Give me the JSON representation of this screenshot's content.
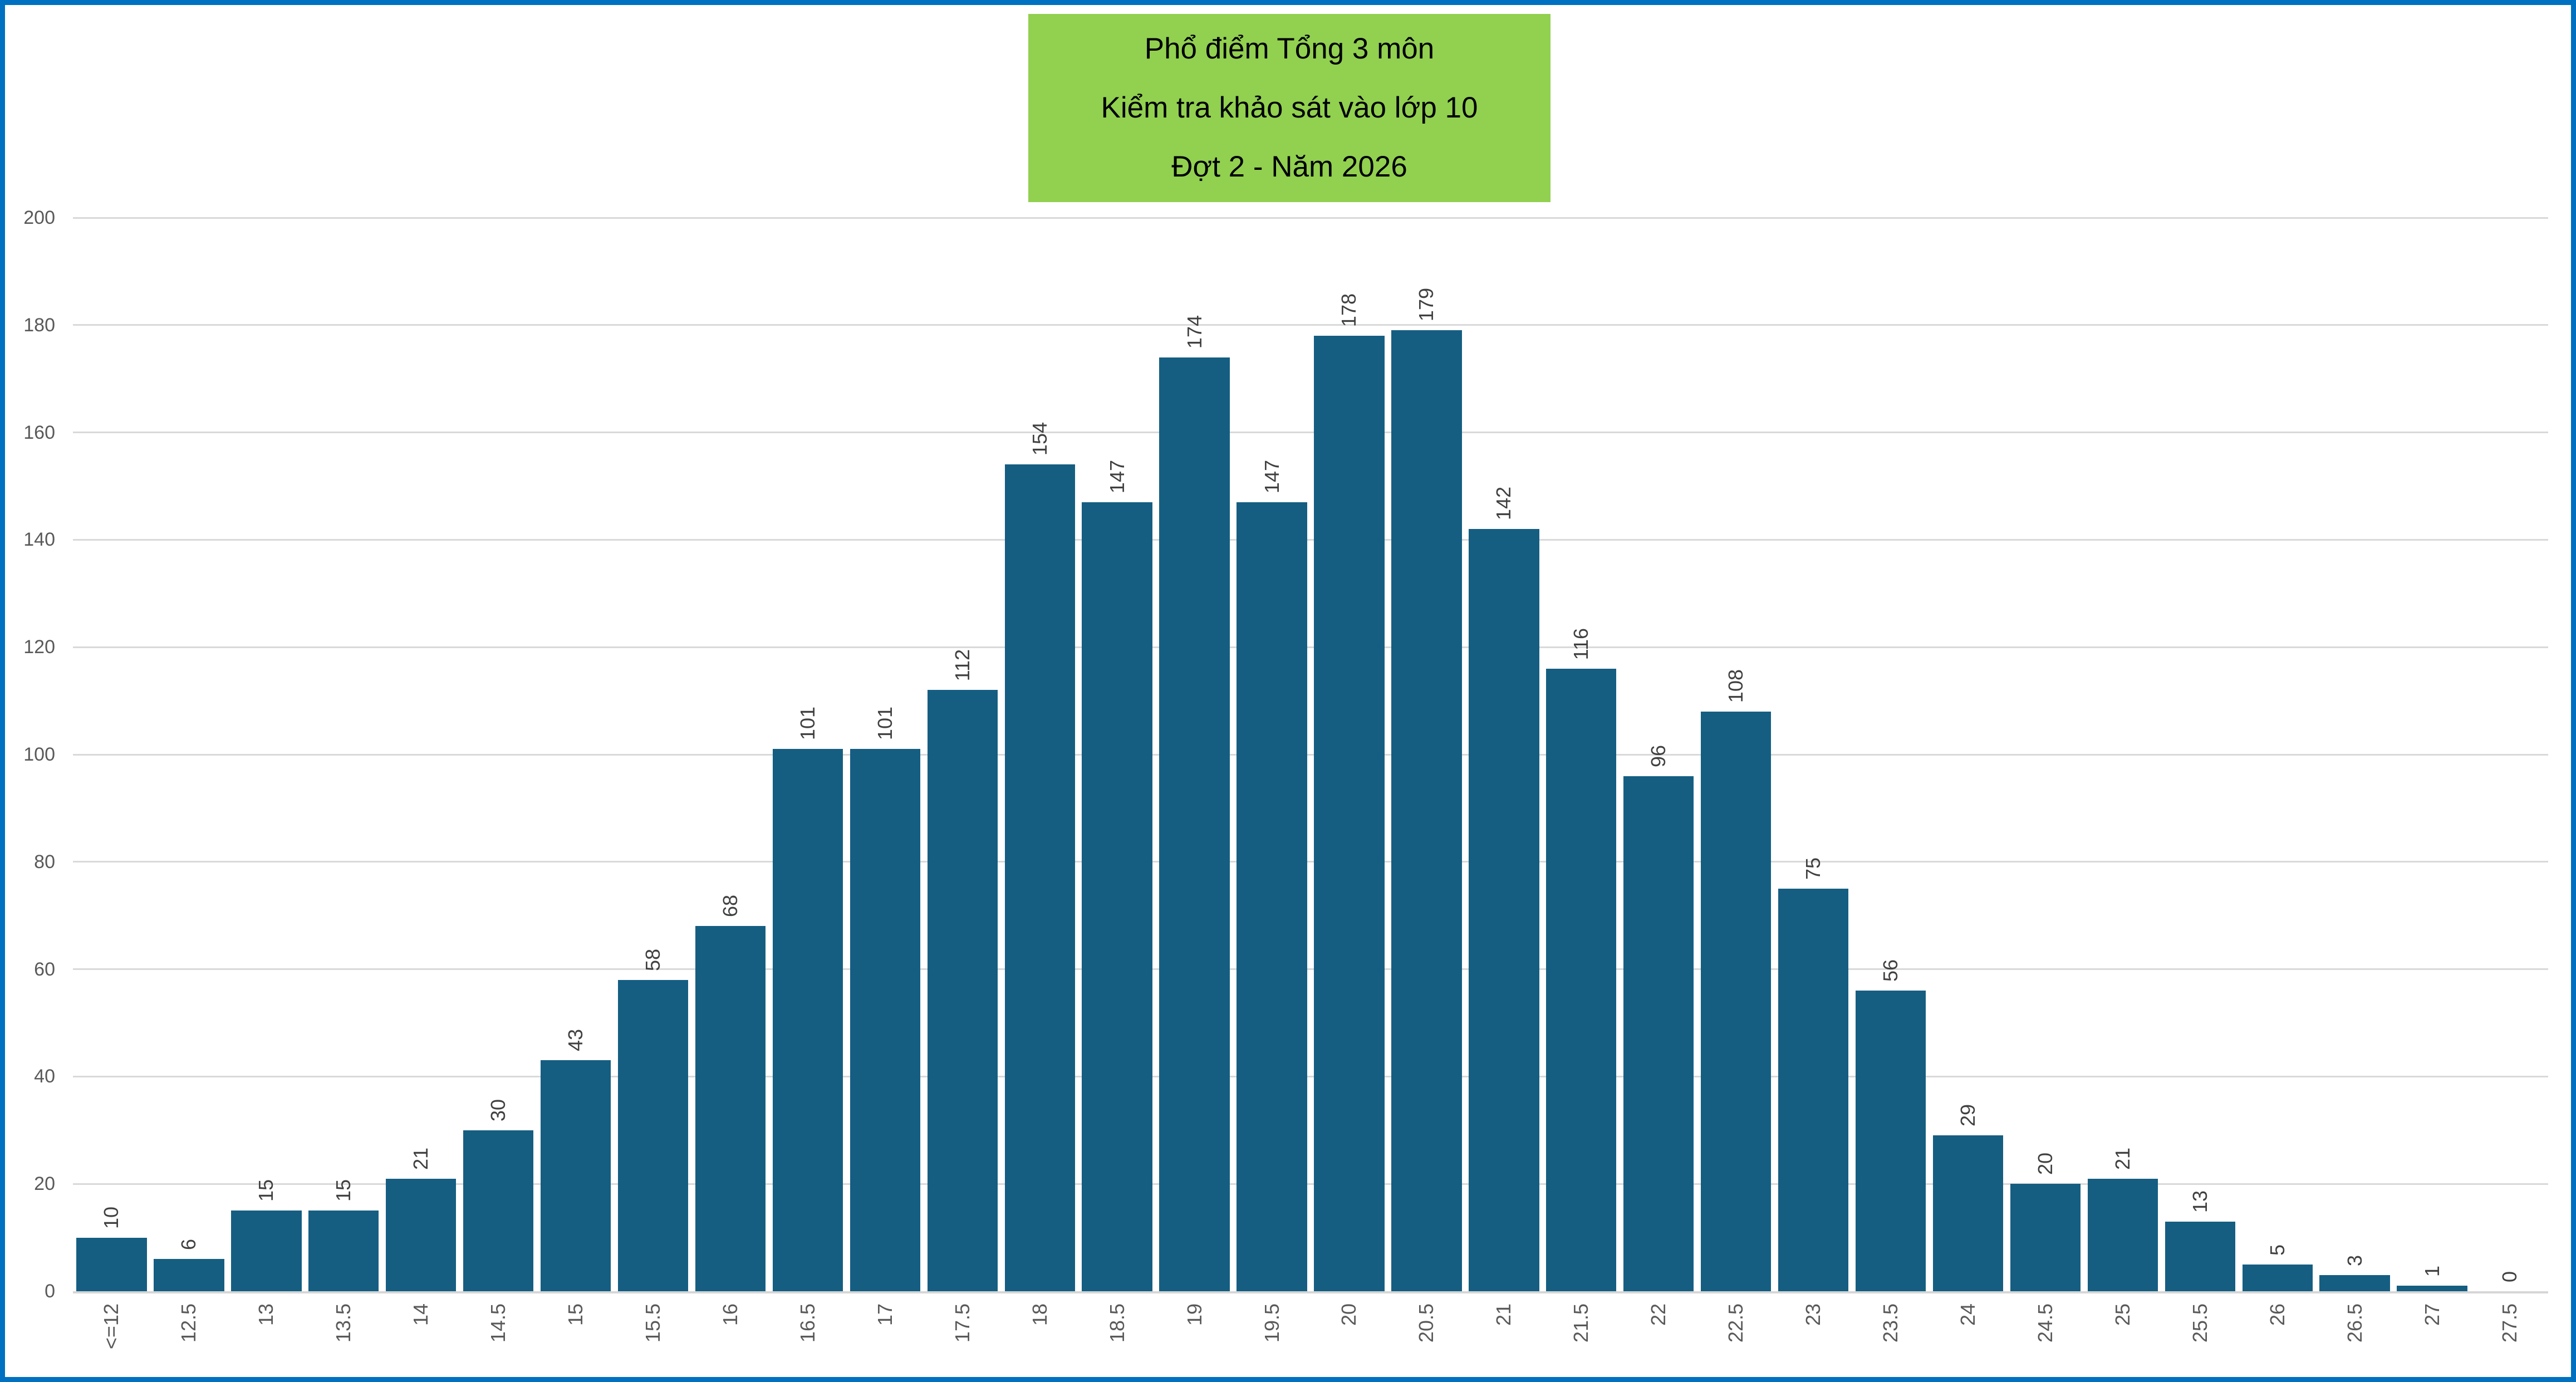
{
  "chart_data": {
    "type": "bar",
    "title_lines": [
      "Phổ điểm Tổng 3 môn",
      "Kiểm tra khảo sát vào lớp 10",
      "Đợt 2 - Năm 2026"
    ],
    "categories": [
      "<=12",
      "12.5",
      "13",
      "13.5",
      "14",
      "14.5",
      "15",
      "15.5",
      "16",
      "16.5",
      "17",
      "17.5",
      "18",
      "18.5",
      "19",
      "19.5",
      "20",
      "20.5",
      "21",
      "21.5",
      "22",
      "22.5",
      "23",
      "23.5",
      "24",
      "24.5",
      "25",
      "25.5",
      "26",
      "26.5",
      "27",
      "27.5"
    ],
    "values": [
      10,
      6,
      15,
      15,
      21,
      30,
      43,
      58,
      68,
      101,
      101,
      112,
      154,
      147,
      174,
      147,
      178,
      179,
      142,
      116,
      96,
      108,
      75,
      56,
      29,
      20,
      21,
      13,
      5,
      3,
      1,
      0
    ],
    "xlabel": "",
    "ylabel": "",
    "ylim": [
      0,
      200
    ],
    "yticks": [
      0,
      20,
      40,
      60,
      80,
      100,
      120,
      140,
      160,
      180,
      200
    ],
    "grid": true,
    "legend": false,
    "value_labels_shown": true,
    "label_rotation_degrees": -90,
    "colors": {
      "bar": "#155E82",
      "title_bg": "#92D050",
      "title_text": "#000000",
      "axis_label": "#595959",
      "value_label": "#404040",
      "gridline": "#D9D9D9",
      "frame_border": "#0070C0",
      "background": "#FFFFFF"
    }
  }
}
